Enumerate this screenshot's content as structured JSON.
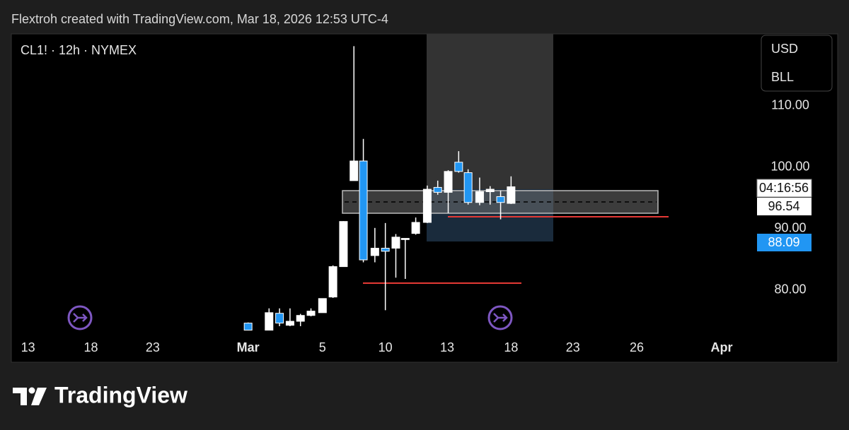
{
  "header": "Flextroh created with TradingView.com, Mar 18, 2026 12:53 UTC-4",
  "chart_data": {
    "type": "candlestick",
    "symbol": "CL1! · 12h · NYMEX",
    "currency": "USD",
    "unit": "BLL",
    "countdown": "04:16:56",
    "last_price": 96.54,
    "alert_price": 88.09,
    "up_color": "#ffffff",
    "down_color": "#2196f3",
    "xlim": [
      0,
      70.5
    ],
    "xticks": [
      {
        "value": 1.6,
        "label": "13"
      },
      {
        "value": 7.6,
        "label": "18"
      },
      {
        "value": 13.5,
        "label": "23"
      },
      {
        "value": 22.6,
        "label": "Mar"
      },
      {
        "value": 29.7,
        "label": "5"
      },
      {
        "value": 35.7,
        "label": "10"
      },
      {
        "value": 41.6,
        "label": "13"
      },
      {
        "value": 47.7,
        "label": "18"
      },
      {
        "value": 53.6,
        "label": "23"
      },
      {
        "value": 59.7,
        "label": "26"
      },
      {
        "value": 67.8,
        "label": "Apr"
      }
    ],
    "ylim": [
      72.6,
      121.7
    ],
    "yticks": [
      {
        "value": 80,
        "label": "80.00"
      },
      {
        "value": 90,
        "label": "90.00"
      },
      {
        "value": 100,
        "label": "100.00"
      },
      {
        "value": 110,
        "label": "110.00"
      }
    ],
    "series": [
      {
        "x": [
          22.6,
          24.6,
          25.6,
          26.6,
          27.6,
          28.6,
          29.7,
          30.7,
          31.7,
          32.7,
          33.6,
          34.7,
          35.7,
          36.7,
          37.6,
          38.6,
          39.7,
          40.7,
          41.7,
          42.7,
          43.6,
          44.7,
          45.7,
          46.7,
          47.7
        ],
        "open": [
          74.6,
          73.45,
          76.2,
          74.25,
          74.9,
          75.85,
          76.3,
          78.85,
          83.8,
          97.8,
          101.0,
          85.6,
          86.8,
          86.8,
          88.2,
          89.2,
          91.0,
          96.7,
          95.9,
          100.8,
          99.1,
          94.25,
          96.0,
          95.2,
          94.1
        ],
        "high": [
          74.7,
          77.0,
          77.0,
          77.0,
          76.1,
          77.0,
          78.6,
          84.0,
          91.2,
          119.7,
          104.6,
          90.1,
          90.9,
          89.1,
          88.4,
          91.8,
          97.0,
          97.8,
          99.5,
          102.6,
          99.65,
          98.3,
          96.9,
          96.2,
          98.5
        ],
        "low": [
          73.4,
          73.45,
          74.1,
          74.1,
          74.1,
          75.7,
          76.3,
          78.7,
          83.8,
          97.8,
          84.5,
          84.5,
          76.7,
          82.0,
          81.8,
          89.0,
          90.9,
          95.5,
          92.5,
          99.1,
          93.9,
          93.8,
          93.9,
          91.5,
          94.0
        ],
        "close": [
          73.45,
          76.3,
          74.6,
          74.9,
          75.85,
          76.55,
          78.6,
          83.8,
          91.15,
          101.0,
          84.9,
          86.8,
          86.3,
          88.6,
          88.4,
          91.0,
          96.4,
          95.9,
          99.3,
          99.3,
          94.25,
          96.0,
          96.4,
          94.25,
          96.8
        ]
      }
    ]
  },
  "footer": "TradingView"
}
